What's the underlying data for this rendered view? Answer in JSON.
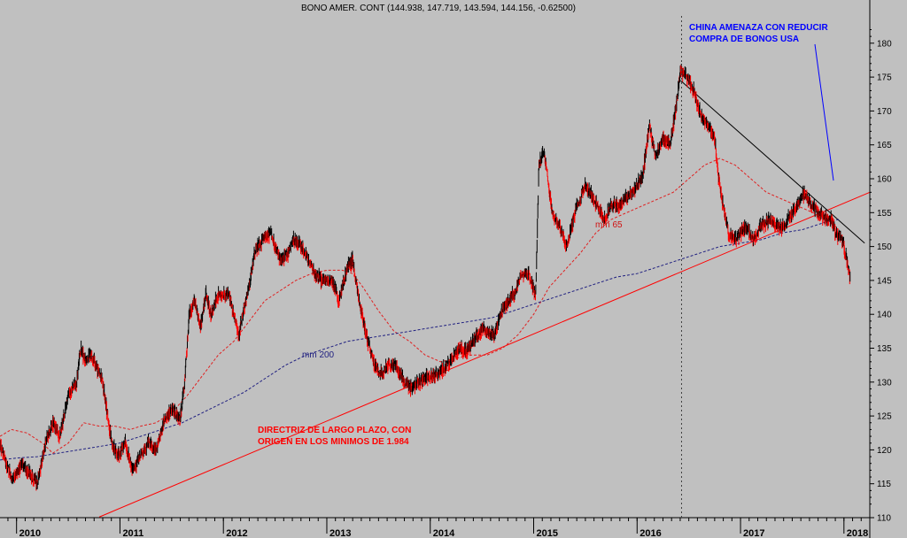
{
  "chart_data": {
    "type": "candlestick",
    "title": "BONO AMER. CONT (144.938, 147.719, 143.594, 144.156, -0.62500)",
    "y_ticks": [
      110,
      115,
      120,
      125,
      130,
      135,
      140,
      145,
      150,
      155,
      160,
      165,
      170,
      175,
      180
    ],
    "ylim": [
      110,
      183.5
    ],
    "x_ticks": [
      "2010",
      "2011",
      "2012",
      "2013",
      "2014",
      "2015",
      "2016",
      "2017",
      "2018"
    ],
    "xlim": [
      2009.84,
      2018.25
    ],
    "grid": false,
    "price_path": [
      [
        2009.84,
        121
      ],
      [
        2009.9,
        118
      ],
      [
        2009.96,
        115.5
      ],
      [
        2010.05,
        118
      ],
      [
        2010.12,
        116.5
      ],
      [
        2010.2,
        115
      ],
      [
        2010.28,
        121
      ],
      [
        2010.35,
        124
      ],
      [
        2010.42,
        122
      ],
      [
        2010.5,
        128
      ],
      [
        2010.58,
        130
      ],
      [
        2010.62,
        135
      ],
      [
        2010.67,
        133
      ],
      [
        2010.72,
        134
      ],
      [
        2010.78,
        132
      ],
      [
        2010.83,
        130
      ],
      [
        2010.88,
        125
      ],
      [
        2010.92,
        121
      ],
      [
        2010.98,
        119
      ],
      [
        2011.05,
        121
      ],
      [
        2011.12,
        117
      ],
      [
        2011.2,
        119
      ],
      [
        2011.28,
        121
      ],
      [
        2011.35,
        120
      ],
      [
        2011.42,
        124
      ],
      [
        2011.5,
        126
      ],
      [
        2011.58,
        124.5
      ],
      [
        2011.62,
        129
      ],
      [
        2011.67,
        140
      ],
      [
        2011.72,
        142
      ],
      [
        2011.78,
        138
      ],
      [
        2011.83,
        143
      ],
      [
        2011.88,
        140
      ],
      [
        2011.95,
        143
      ],
      [
        2012.05,
        143
      ],
      [
        2012.1,
        140
      ],
      [
        2012.15,
        137
      ],
      [
        2012.2,
        141
      ],
      [
        2012.25,
        144
      ],
      [
        2012.3,
        149
      ],
      [
        2012.38,
        151
      ],
      [
        2012.45,
        152
      ],
      [
        2012.5,
        150
      ],
      [
        2012.55,
        148
      ],
      [
        2012.62,
        149
      ],
      [
        2012.68,
        151
      ],
      [
        2012.75,
        150
      ],
      [
        2012.82,
        148
      ],
      [
        2012.88,
        146
      ],
      [
        2012.95,
        145
      ],
      [
        2013.05,
        145
      ],
      [
        2013.12,
        142
      ],
      [
        2013.2,
        147
      ],
      [
        2013.25,
        148
      ],
      [
        2013.3,
        143
      ],
      [
        2013.38,
        137
      ],
      [
        2013.45,
        133
      ],
      [
        2013.52,
        131
      ],
      [
        2013.6,
        133
      ],
      [
        2013.68,
        132
      ],
      [
        2013.75,
        130
      ],
      [
        2013.82,
        129
      ],
      [
        2013.88,
        130
      ],
      [
        2013.95,
        130.5
      ],
      [
        2014.05,
        131
      ],
      [
        2014.12,
        132
      ],
      [
        2014.2,
        133
      ],
      [
        2014.28,
        135
      ],
      [
        2014.35,
        134.5
      ],
      [
        2014.42,
        136
      ],
      [
        2014.5,
        138
      ],
      [
        2014.58,
        137
      ],
      [
        2014.62,
        137
      ],
      [
        2014.68,
        140
      ],
      [
        2014.75,
        142
      ],
      [
        2014.82,
        143
      ],
      [
        2014.88,
        146
      ],
      [
        2014.95,
        146
      ],
      [
        2015.02,
        143
      ],
      [
        2015.05,
        162
      ],
      [
        2015.1,
        164
      ],
      [
        2015.18,
        155
      ],
      [
        2015.25,
        153
      ],
      [
        2015.32,
        150
      ],
      [
        2015.4,
        155
      ],
      [
        2015.5,
        159
      ],
      [
        2015.58,
        157
      ],
      [
        2015.62,
        156
      ],
      [
        2015.68,
        154
      ],
      [
        2015.75,
        156
      ],
      [
        2015.82,
        156
      ],
      [
        2015.88,
        157
      ],
      [
        2015.95,
        158
      ],
      [
        2016.05,
        160
      ],
      [
        2016.12,
        168
      ],
      [
        2016.18,
        163
      ],
      [
        2016.25,
        166
      ],
      [
        2016.32,
        165
      ],
      [
        2016.38,
        171
      ],
      [
        2016.42,
        176
      ],
      [
        2016.48,
        175
      ],
      [
        2016.55,
        173
      ],
      [
        2016.62,
        169
      ],
      [
        2016.68,
        168
      ],
      [
        2016.75,
        166
      ],
      [
        2016.78,
        161
      ],
      [
        2016.82,
        157
      ],
      [
        2016.88,
        152
      ],
      [
        2016.95,
        151
      ],
      [
        2017.05,
        153
      ],
      [
        2017.12,
        151
      ],
      [
        2017.2,
        153
      ],
      [
        2017.28,
        154
      ],
      [
        2017.35,
        153
      ],
      [
        2017.42,
        153
      ],
      [
        2017.5,
        155
      ],
      [
        2017.58,
        157
      ],
      [
        2017.62,
        158
      ],
      [
        2017.68,
        156
      ],
      [
        2017.75,
        155
      ],
      [
        2017.82,
        154
      ],
      [
        2017.88,
        154
      ],
      [
        2017.92,
        152
      ],
      [
        2017.98,
        151
      ],
      [
        2018.03,
        148
      ],
      [
        2018.06,
        145
      ]
    ],
    "series": [
      {
        "name": "mm 65",
        "style": "dashed",
        "color": "#e02020",
        "points": [
          [
            2009.84,
            122
          ],
          [
            2009.95,
            123
          ],
          [
            2010.1,
            122.5
          ],
          [
            2010.25,
            121
          ],
          [
            2010.35,
            119.5
          ],
          [
            2010.5,
            121
          ],
          [
            2010.65,
            124
          ],
          [
            2010.8,
            123.5
          ],
          [
            2010.95,
            123.5
          ],
          [
            2011.1,
            123
          ],
          [
            2011.2,
            123.5
          ],
          [
            2011.35,
            124
          ],
          [
            2011.5,
            125.5
          ],
          [
            2011.65,
            128
          ],
          [
            2011.8,
            131
          ],
          [
            2011.95,
            134
          ],
          [
            2012.1,
            136
          ],
          [
            2012.25,
            139
          ],
          [
            2012.4,
            142
          ],
          [
            2012.55,
            143.5
          ],
          [
            2012.7,
            145
          ],
          [
            2012.85,
            146
          ],
          [
            2013.0,
            146.5
          ],
          [
            2013.15,
            146.5
          ],
          [
            2013.25,
            146
          ],
          [
            2013.35,
            144
          ],
          [
            2013.5,
            140.5
          ],
          [
            2013.65,
            137.5
          ],
          [
            2013.8,
            136
          ],
          [
            2013.95,
            134
          ],
          [
            2014.1,
            133
          ],
          [
            2014.25,
            133.5
          ],
          [
            2014.4,
            134
          ],
          [
            2014.55,
            134
          ],
          [
            2014.7,
            135
          ],
          [
            2014.85,
            137
          ],
          [
            2015.0,
            140
          ],
          [
            2015.15,
            144
          ],
          [
            2015.3,
            146.5
          ],
          [
            2015.45,
            149
          ],
          [
            2015.6,
            152
          ],
          [
            2015.75,
            154
          ],
          [
            2015.9,
            155
          ],
          [
            2016.05,
            156
          ],
          [
            2016.2,
            157
          ],
          [
            2016.35,
            158
          ],
          [
            2016.5,
            160
          ],
          [
            2016.65,
            162
          ],
          [
            2016.8,
            163
          ],
          [
            2016.95,
            162
          ],
          [
            2017.1,
            160
          ],
          [
            2017.25,
            158
          ],
          [
            2017.4,
            157
          ],
          [
            2017.55,
            156
          ],
          [
            2017.7,
            155
          ],
          [
            2017.85,
            154
          ],
          [
            2017.95,
            152.5
          ]
        ]
      },
      {
        "name": "mm 200",
        "style": "dashed",
        "color": "#202080",
        "points": [
          [
            2009.84,
            118.5
          ],
          [
            2010.0,
            118.8
          ],
          [
            2010.2,
            119
          ],
          [
            2010.4,
            119.5
          ],
          [
            2010.6,
            120
          ],
          [
            2010.8,
            120.5
          ],
          [
            2011.0,
            121
          ],
          [
            2011.2,
            122
          ],
          [
            2011.4,
            123
          ],
          [
            2011.6,
            124
          ],
          [
            2011.8,
            125.5
          ],
          [
            2012.0,
            127
          ],
          [
            2012.2,
            128.5
          ],
          [
            2012.4,
            130.5
          ],
          [
            2012.6,
            132.5
          ],
          [
            2012.8,
            134
          ],
          [
            2013.0,
            135
          ],
          [
            2013.2,
            136
          ],
          [
            2013.4,
            136.5
          ],
          [
            2013.6,
            137
          ],
          [
            2013.8,
            137.5
          ],
          [
            2014.0,
            138
          ],
          [
            2014.2,
            138.5
          ],
          [
            2014.4,
            139
          ],
          [
            2014.6,
            139.5
          ],
          [
            2014.8,
            140.5
          ],
          [
            2015.0,
            141.5
          ],
          [
            2015.2,
            142.5
          ],
          [
            2015.4,
            143.5
          ],
          [
            2015.6,
            144.5
          ],
          [
            2015.8,
            145.5
          ],
          [
            2016.0,
            146
          ],
          [
            2016.2,
            147
          ],
          [
            2016.4,
            148
          ],
          [
            2016.6,
            149
          ],
          [
            2016.8,
            150
          ],
          [
            2017.0,
            150.5
          ],
          [
            2017.2,
            151
          ],
          [
            2017.4,
            152
          ],
          [
            2017.6,
            152.5
          ],
          [
            2017.8,
            153.5
          ],
          [
            2017.95,
            154
          ]
        ]
      }
    ],
    "trendlines": [
      {
        "color": "#ff0000",
        "from": [
          2010.8,
          110.1
        ],
        "to": [
          2018.25,
          158
        ]
      },
      {
        "color": "#000000",
        "from": [
          2016.42,
          174.5
        ],
        "to": [
          2018.2,
          150.5
        ]
      }
    ],
    "vline": {
      "x": 2016.43,
      "style": "dotted",
      "color": "#404040"
    },
    "annotations": {
      "long_term_line": [
        "DIRECTRIZ DE LARGO PLAZO, CON",
        "ORIGEN EN LOS MINIMOS DE 1.984"
      ],
      "china": [
        "CHINA AMENAZA CON REDUCIR",
        "COMPRA DE BONOS USA"
      ],
      "ma65_label": "mm 65",
      "ma200_label": "mm 200"
    },
    "colors": {
      "background": "#c0c0c0",
      "up": "#000000",
      "down": "#ff0000"
    }
  }
}
